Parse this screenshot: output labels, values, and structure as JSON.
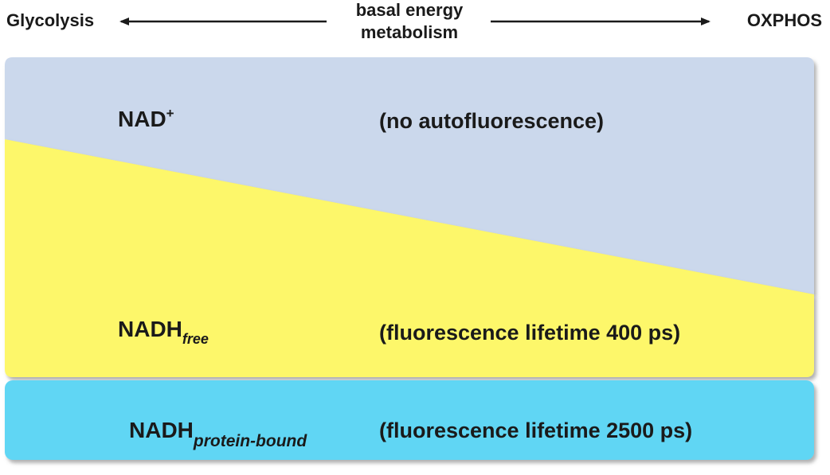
{
  "header": {
    "left_label": "Glycolysis",
    "center_label_line1": "basal energy",
    "center_label_line2": "metabolism",
    "right_label": "OXPHOS"
  },
  "regions": {
    "nad_plus": {
      "name_base": "NAD",
      "name_superscript": "+",
      "description": "(no autofluorescence)",
      "color": "#cbd8ec"
    },
    "nadh_free": {
      "name_base": "NADH",
      "name_subscript": "free",
      "description": "(fluorescence lifetime 400 ps)",
      "color": "#fdf76a"
    },
    "nadh_bound": {
      "name_base": "NADH",
      "name_subscript": "protein-bound",
      "description": "(fluorescence lifetime 2500 ps)",
      "color": "#60d6f4"
    }
  },
  "colors": {
    "text": "#1a1a1a",
    "arrow": "#1a1a1a",
    "shadow": "#8a8a8a"
  }
}
